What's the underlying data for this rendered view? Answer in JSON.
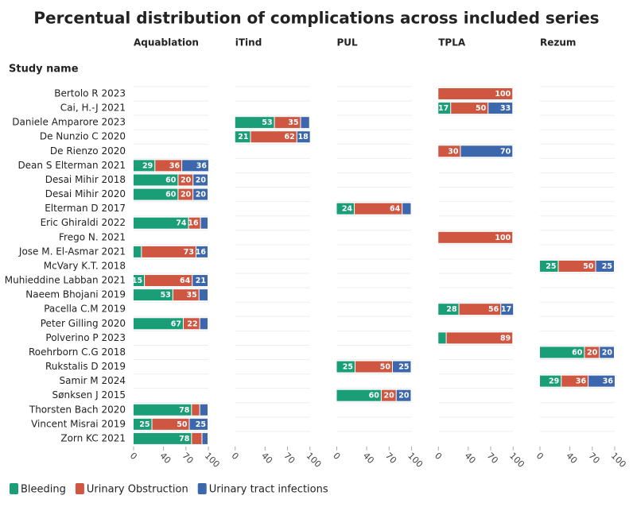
{
  "chart_data": {
    "type": "bar",
    "title": "Percentual distribution of complications across included series",
    "y_label": "Study name",
    "panels": [
      "Aquablation",
      "iTind",
      "PUL",
      "TPLA",
      "Rezum"
    ],
    "categories": [
      "Bertolo R 2023",
      "Cai, H.-J 2021",
      "Daniele Amparore 2023",
      "De Nunzio C 2020",
      "De Rienzo 2020",
      "Dean S Elterman 2021",
      "Desai Mihir 2018",
      "Desai Mihir 2020",
      "Elterman D 2017",
      "Eric Ghiraldi 2022",
      "Frego N. 2021",
      "Jose M. El-Asmar 2021",
      "McVary K.T. 2018",
      "Muhieddine Labban 2021",
      "Naeem Bhojani 2019",
      "Pacella C.M 2019",
      "Peter Gilling 2020",
      "Polverino P 2023",
      "Roehrborn C.G 2018",
      "Rukstalis D 2019",
      "Samir M 2024",
      "Sønksen J 2015",
      "Thorsten Bach 2020",
      "Vincent Misrai 2019",
      "Zorn KC 2021"
    ],
    "xlim": [
      0,
      100
    ],
    "xticks": [
      0,
      40,
      70,
      100
    ],
    "series": [
      {
        "name": "Bleeding",
        "color": "#1a9e78",
        "values": [
          [
            null,
            null,
            null,
            null,
            null,
            29,
            60,
            60,
            null,
            74,
            null,
            11,
            null,
            15,
            53,
            null,
            67,
            null,
            null,
            null,
            null,
            null,
            78,
            25,
            78
          ],
          [
            null,
            null,
            53,
            21,
            null,
            null,
            null,
            null,
            null,
            null,
            null,
            null,
            null,
            null,
            null,
            null,
            null,
            null,
            null,
            null,
            null,
            null,
            null,
            null,
            null
          ],
          [
            null,
            null,
            null,
            null,
            null,
            null,
            null,
            null,
            24,
            null,
            null,
            null,
            null,
            null,
            null,
            null,
            null,
            null,
            null,
            25,
            null,
            60,
            null,
            null,
            null
          ],
          [
            null,
            17,
            null,
            null,
            null,
            null,
            null,
            null,
            null,
            null,
            null,
            null,
            null,
            null,
            null,
            28,
            null,
            11,
            null,
            null,
            null,
            null,
            null,
            null,
            null
          ],
          [
            null,
            null,
            null,
            null,
            null,
            null,
            null,
            null,
            null,
            null,
            null,
            null,
            25,
            null,
            null,
            null,
            null,
            null,
            60,
            null,
            29,
            null,
            null,
            null,
            null
          ]
        ]
      },
      {
        "name": "Urinary Obstruction",
        "color": "#cf5641",
        "values": [
          [
            null,
            null,
            null,
            null,
            null,
            36,
            20,
            20,
            null,
            16,
            null,
            73,
            null,
            64,
            35,
            null,
            22,
            null,
            null,
            null,
            null,
            null,
            11,
            50,
            14
          ],
          [
            null,
            null,
            35,
            62,
            null,
            null,
            null,
            null,
            null,
            null,
            null,
            null,
            null,
            null,
            null,
            null,
            null,
            null,
            null,
            null,
            null,
            null,
            null,
            null,
            null
          ],
          [
            null,
            null,
            null,
            null,
            null,
            null,
            null,
            null,
            64,
            null,
            null,
            null,
            null,
            null,
            null,
            null,
            null,
            null,
            null,
            50,
            null,
            20,
            null,
            null,
            null
          ],
          [
            100,
            50,
            null,
            null,
            30,
            null,
            null,
            null,
            null,
            null,
            100,
            null,
            null,
            null,
            null,
            56,
            null,
            89,
            null,
            null,
            null,
            null,
            null,
            null,
            null
          ],
          [
            null,
            null,
            null,
            null,
            null,
            null,
            null,
            null,
            null,
            null,
            null,
            null,
            50,
            null,
            null,
            null,
            null,
            null,
            20,
            null,
            36,
            null,
            null,
            null,
            null
          ]
        ]
      },
      {
        "name": "Urinary tract infections",
        "color": "#3c67ad",
        "values": [
          [
            null,
            null,
            null,
            null,
            null,
            36,
            20,
            20,
            null,
            10,
            null,
            16,
            null,
            21,
            12,
            null,
            11,
            null,
            null,
            null,
            null,
            null,
            11,
            25,
            8
          ],
          [
            null,
            null,
            12,
            18,
            null,
            null,
            null,
            null,
            null,
            null,
            null,
            null,
            null,
            null,
            null,
            null,
            null,
            null,
            null,
            null,
            null,
            null,
            null,
            null,
            null
          ],
          [
            null,
            null,
            null,
            null,
            null,
            null,
            null,
            null,
            12,
            null,
            null,
            null,
            null,
            null,
            null,
            null,
            null,
            null,
            null,
            25,
            null,
            20,
            null,
            null,
            null
          ],
          [
            null,
            33,
            null,
            null,
            70,
            null,
            null,
            null,
            null,
            null,
            null,
            null,
            null,
            null,
            null,
            17,
            null,
            null,
            null,
            null,
            null,
            null,
            null,
            null,
            null
          ],
          [
            null,
            null,
            null,
            null,
            null,
            null,
            null,
            null,
            null,
            null,
            null,
            null,
            25,
            null,
            null,
            null,
            null,
            null,
            20,
            null,
            36,
            null,
            null,
            null,
            null
          ]
        ]
      }
    ]
  }
}
